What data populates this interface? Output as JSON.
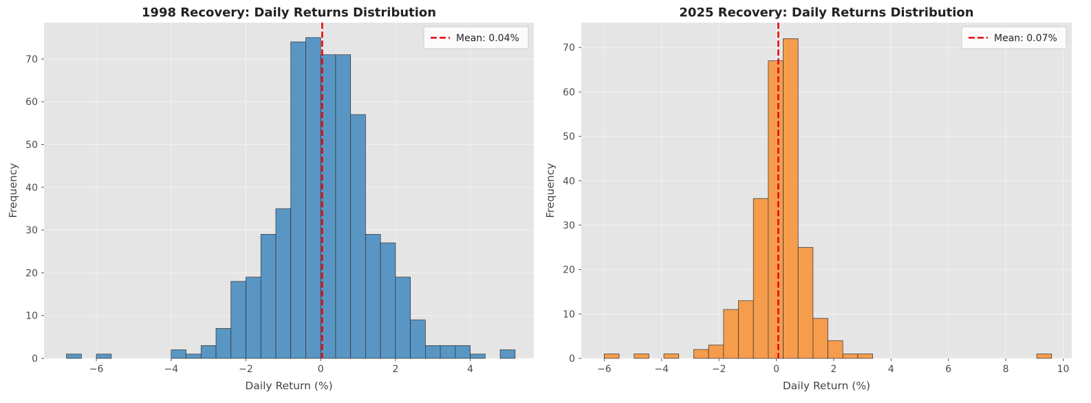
{
  "chart_data": [
    {
      "type": "bar",
      "title": "1998 Recovery: Daily Returns Distribution",
      "xlabel": "Daily Return (%)",
      "ylabel": "Frequency",
      "xlim": [
        -7.4,
        5.7
      ],
      "ylim": [
        0,
        78.5
      ],
      "xticks": [
        -6,
        -4,
        -2,
        0,
        2,
        4
      ],
      "xtick_labels": [
        "−6",
        "−4",
        "−2",
        "0",
        "2",
        "4"
      ],
      "yticks": [
        0,
        10,
        20,
        30,
        40,
        50,
        60,
        70
      ],
      "ytick_labels": [
        "0",
        "10",
        "20",
        "30",
        "40",
        "50",
        "60",
        "70"
      ],
      "bin_edges": [
        -6.8,
        -6.4,
        -6.0,
        -5.6,
        -5.2,
        -4.8,
        -4.4,
        -4.0,
        -3.6,
        -3.2,
        -2.8,
        -2.4,
        -2.0,
        -1.6,
        -1.2,
        -0.8,
        -0.4,
        0.0,
        0.4,
        0.8,
        1.2,
        1.6,
        2.0,
        2.4,
        2.8,
        3.2,
        3.6,
        4.0,
        4.4,
        4.8,
        5.2
      ],
      "values": [
        1,
        0,
        1,
        0,
        0,
        0,
        0,
        2,
        1,
        3,
        7,
        18,
        19,
        29,
        35,
        74,
        75,
        71,
        71,
        57,
        29,
        27,
        19,
        9,
        3,
        3,
        3,
        1,
        0,
        2
      ],
      "bar_color": "#5a96c4",
      "mean": 0.04,
      "mean_color": "#ee0000",
      "legend": {
        "label": "Mean: 0.04%",
        "position": "top-right"
      },
      "grid": true
    },
    {
      "type": "bar",
      "title": "2025 Recovery: Daily Returns Distribution",
      "xlabel": "Daily Return (%)",
      "ylabel": "Frequency",
      "xlim": [
        -6.8,
        10.3
      ],
      "ylim": [
        0,
        75.6
      ],
      "xticks": [
        -6,
        -4,
        -2,
        0,
        2,
        4,
        6,
        8,
        10
      ],
      "xtick_labels": [
        "−6",
        "−4",
        "−2",
        "0",
        "2",
        "4",
        "6",
        "8",
        "10"
      ],
      "yticks": [
        0,
        10,
        20,
        30,
        40,
        50,
        60,
        70
      ],
      "ytick_labels": [
        "0",
        "10",
        "20",
        "30",
        "40",
        "50",
        "60",
        "70"
      ],
      "bin_edges": [
        -6.0,
        -5.48,
        -4.96,
        -4.44,
        -3.92,
        -3.4,
        -2.88,
        -2.36,
        -1.84,
        -1.32,
        -0.8,
        -0.28,
        0.24,
        0.76,
        1.28,
        1.8,
        2.32,
        2.84,
        3.36,
        3.88,
        4.4,
        4.92,
        5.44,
        5.96,
        6.48,
        7.0,
        7.52,
        8.04,
        8.56,
        9.08,
        9.6
      ],
      "values": [
        1,
        0,
        1,
        0,
        1,
        0,
        2,
        3,
        11,
        13,
        36,
        67,
        72,
        25,
        9,
        4,
        1,
        1,
        0,
        0,
        0,
        0,
        0,
        0,
        0,
        0,
        0,
        0,
        0,
        1
      ],
      "bar_color": "#f59d4d",
      "mean": 0.07,
      "mean_color": "#ee0000",
      "legend": {
        "label": "Mean: 0.07%",
        "position": "top-right"
      },
      "grid": true
    }
  ]
}
